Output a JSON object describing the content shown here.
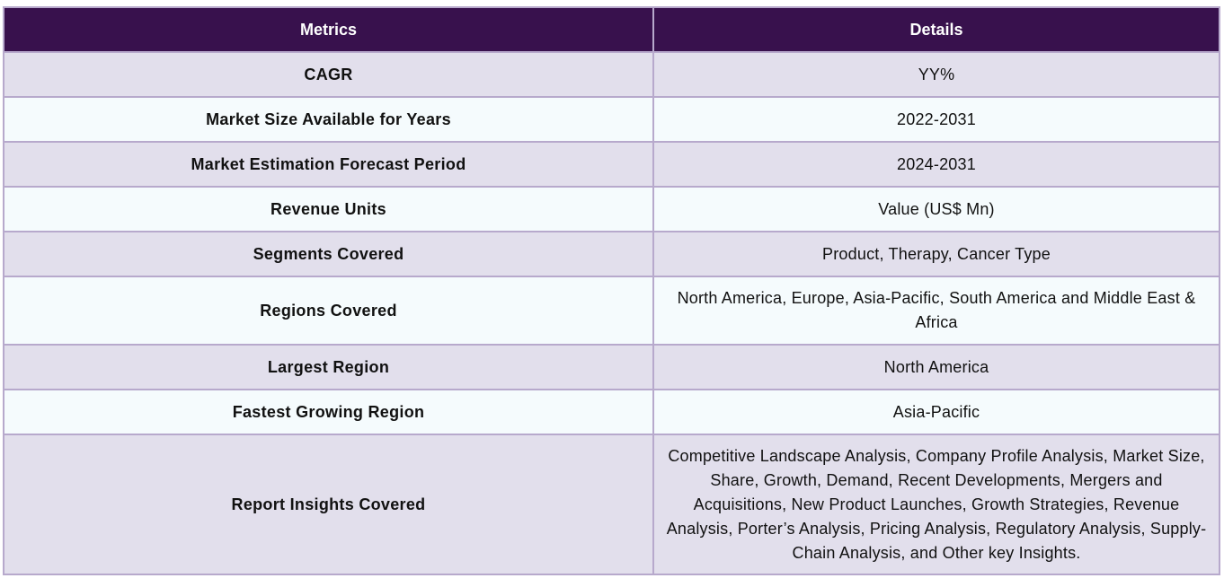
{
  "table": {
    "headers": {
      "metrics": "Metrics",
      "details": "Details"
    },
    "rows": [
      {
        "metric": "CAGR",
        "detail": "YY%"
      },
      {
        "metric": "Market Size Available for Years",
        "detail": "2022-2031"
      },
      {
        "metric": "Market Estimation Forecast Period",
        "detail": "2024-2031"
      },
      {
        "metric": "Revenue Units",
        "detail": "Value (US$ Mn)"
      },
      {
        "metric": "Segments Covered",
        "detail": "Product, Therapy, Cancer Type"
      },
      {
        "metric": "Regions Covered",
        "detail": "North America, Europe, Asia-Pacific, South America and Middle East & Africa"
      },
      {
        "metric": "Largest Region",
        "detail": "North America"
      },
      {
        "metric": "Fastest Growing Region",
        "detail": "Asia-Pacific"
      },
      {
        "metric": "Report Insights Covered",
        "detail": "Competitive Landscape Analysis, Company Profile Analysis, Market Size, Share, Growth, Demand, Recent Developments, Mergers and Acquisitions, New Product Launches, Growth Strategies, Revenue Analysis, Porter’s Analysis, Pricing Analysis, Regulatory Analysis, Supply-Chain Analysis, and Other key Insights."
      }
    ],
    "colors": {
      "header_bg": "#38114d",
      "header_text": "#ffffff",
      "row_odd_bg": "#e2dfec",
      "row_even_bg": "#f5fbfd",
      "border": "#b7a9cc"
    }
  }
}
